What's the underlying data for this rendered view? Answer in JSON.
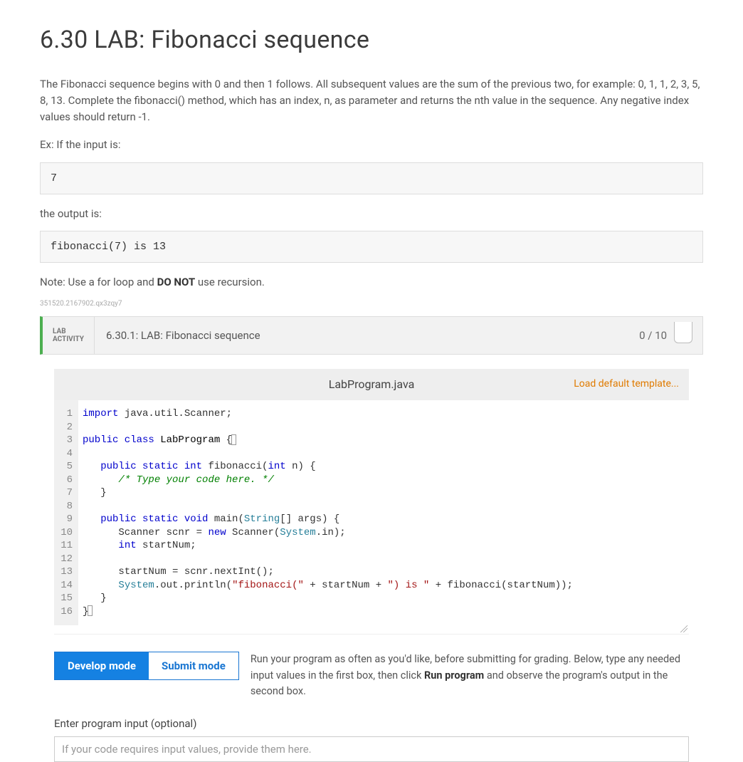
{
  "title": "6.30 LAB: Fibonacci sequence",
  "description": "The Fibonacci sequence begins with 0 and then 1 follows. All subsequent values are the sum of the previous two, for example: 0, 1, 1, 2, 3, 5, 8, 13. Complete the fibonacci() method, which has an index, n, as parameter and returns the nth value in the sequence. Any negative index values should return -1.",
  "ex_intro": "Ex: If the input is:",
  "ex_input": "7",
  "ex_output_label": "the output is:",
  "ex_output": "fibonacci(7) is 13",
  "note_prefix": "Note: Use a for loop and ",
  "note_bold": "DO NOT",
  "note_suffix": " use recursion.",
  "activity_id": "351520.2167902.qx3zqy7",
  "lab_tag_line1": "LAB",
  "lab_tag_line2": "ACTIVITY",
  "lab_title": "6.30.1: LAB: Fibonacci sequence",
  "lab_score": "0 / 10",
  "file_name": "LabProgram.java",
  "load_template": "Load default template...",
  "code": {
    "line_count": 16,
    "tokens": [
      [
        {
          "t": "import",
          "c": "kw"
        },
        {
          "t": " java.util.Scanner;",
          "c": ""
        }
      ],
      [
        {
          "t": "",
          "c": ""
        }
      ],
      [
        {
          "t": "public class",
          "c": "kw"
        },
        {
          "t": " LabProgram ",
          "c": "cls"
        },
        {
          "t": "{",
          "c": "",
          "cursor": true
        }
      ],
      [
        {
          "t": "",
          "c": ""
        }
      ],
      [
        {
          "t": "   ",
          "c": ""
        },
        {
          "t": "public static int",
          "c": "kw"
        },
        {
          "t": " fibonacci(",
          "c": ""
        },
        {
          "t": "int",
          "c": "kw"
        },
        {
          "t": " n) {",
          "c": ""
        }
      ],
      [
        {
          "t": "      ",
          "c": ""
        },
        {
          "t": "/* Type your code here. */",
          "c": "comment"
        }
      ],
      [
        {
          "t": "   }",
          "c": ""
        }
      ],
      [
        {
          "t": "   ",
          "c": ""
        }
      ],
      [
        {
          "t": "   ",
          "c": ""
        },
        {
          "t": "public static void",
          "c": "kw"
        },
        {
          "t": " main(",
          "c": ""
        },
        {
          "t": "String",
          "c": "type"
        },
        {
          "t": "[] args) {",
          "c": ""
        }
      ],
      [
        {
          "t": "      Scanner scnr = ",
          "c": ""
        },
        {
          "t": "new",
          "c": "kw"
        },
        {
          "t": " Scanner(",
          "c": ""
        },
        {
          "t": "System",
          "c": "type"
        },
        {
          "t": ".in);",
          "c": ""
        }
      ],
      [
        {
          "t": "      ",
          "c": ""
        },
        {
          "t": "int",
          "c": "kw"
        },
        {
          "t": " startNum;",
          "c": ""
        }
      ],
      [
        {
          "t": "      ",
          "c": ""
        }
      ],
      [
        {
          "t": "      startNum = scnr.nextInt();",
          "c": ""
        }
      ],
      [
        {
          "t": "      ",
          "c": ""
        },
        {
          "t": "System",
          "c": "type"
        },
        {
          "t": ".out.println(",
          "c": ""
        },
        {
          "t": "\"fibonacci(\"",
          "c": "str"
        },
        {
          "t": " + startNum + ",
          "c": ""
        },
        {
          "t": "\") is \"",
          "c": "str"
        },
        {
          "t": " + fibonacci(startNum));",
          "c": ""
        }
      ],
      [
        {
          "t": "   }",
          "c": ""
        }
      ],
      [
        {
          "t": "}",
          "c": "",
          "cursor_after": true
        }
      ]
    ]
  },
  "mode": {
    "develop": "Develop mode",
    "submit": "Submit mode",
    "help_prefix": "Run your program as often as you'd like, before submitting for grading. Below, type any needed input values in the first box, then click ",
    "help_bold": "Run program",
    "help_suffix": " and observe the program's output in the second box."
  },
  "input": {
    "label": "Enter program input (optional)",
    "placeholder": "If your code requires input values, provide them here."
  },
  "colors": {
    "accent_green": "#4caf50",
    "accent_blue": "#1581e2",
    "accent_orange": "#e07b00",
    "panel_bg": "#f2f2f2",
    "io_bg": "#f7f7f7",
    "border": "#dddddd"
  }
}
